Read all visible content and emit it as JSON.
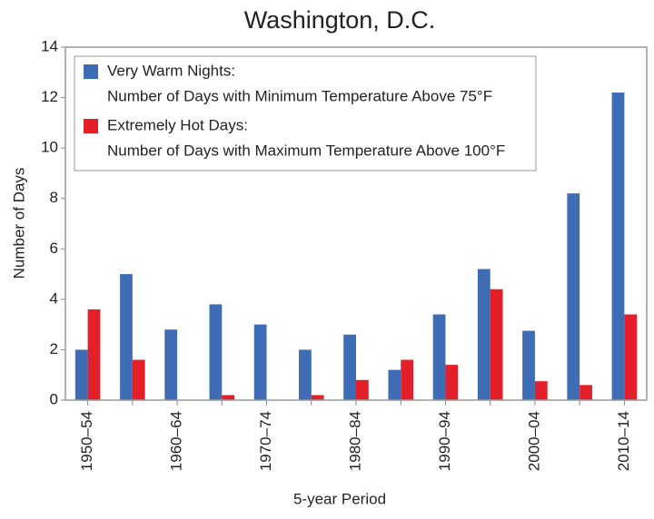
{
  "chart_data": {
    "type": "bar",
    "title": "Washington, D.C.",
    "x_label": "5-year Period",
    "y_label": "Number of Days",
    "categories": [
      "1950–54",
      null,
      "1960–64",
      null,
      "1970–74",
      null,
      "1980–84",
      null,
      "1990–94",
      null,
      "2000–04",
      null,
      "2010–14"
    ],
    "series": [
      {
        "name": "Very Warm Nights:",
        "description": "Number of Days with Minimum Temperature Above 75°F",
        "color": "#3e6db5",
        "values": [
          2.0,
          5.0,
          2.8,
          3.8,
          3.0,
          2.0,
          2.6,
          1.2,
          3.4,
          5.2,
          2.75,
          8.2,
          12.2
        ]
      },
      {
        "name": "Extremely Hot Days:",
        "description": "Number of Days with Maximum Temperature Above 100°F",
        "color": "#e3202a",
        "values": [
          3.6,
          1.6,
          0,
          0.2,
          0,
          0.2,
          0.8,
          1.6,
          1.4,
          4.4,
          0.75,
          0.6,
          3.4
        ]
      }
    ],
    "ylim": [
      0,
      14
    ],
    "yticks": [
      0,
      2,
      4,
      6,
      8,
      10,
      12,
      14
    ],
    "legend": "top-left"
  }
}
